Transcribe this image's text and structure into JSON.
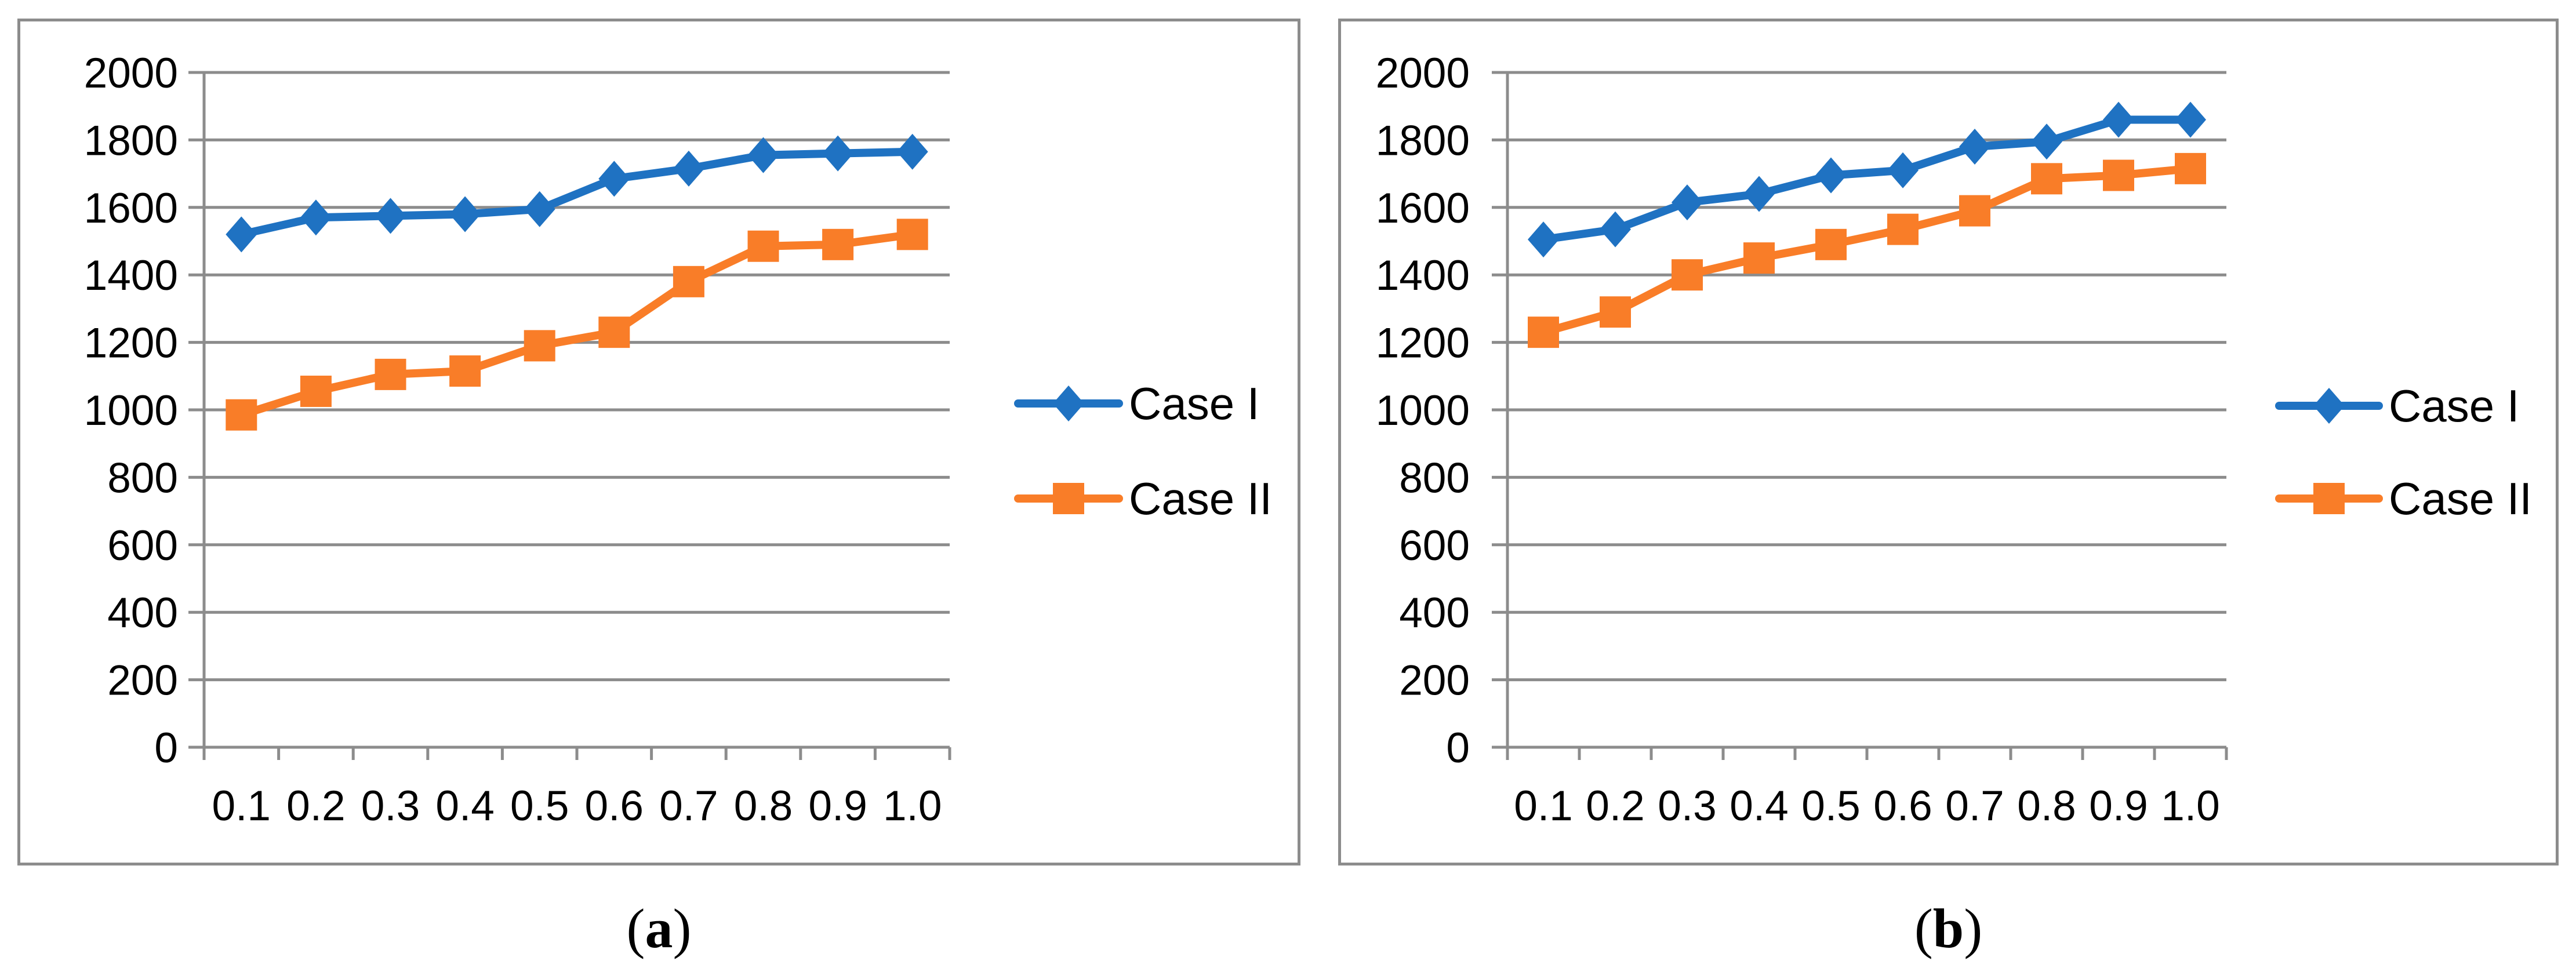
{
  "page": {
    "background": "#ffffff"
  },
  "colors": {
    "case1": "#1F72C2",
    "case2": "#F97D28",
    "grid": "#8C8C8C",
    "axis": "#8C8C8C",
    "border": "#8C8C8C",
    "text": "#000000"
  },
  "captions": {
    "a": {
      "open": "(",
      "label": "a",
      "close": ")"
    },
    "b": {
      "open": "(",
      "label": "b",
      "close": ")"
    }
  },
  "chart_data": [
    {
      "id": "a",
      "type": "line",
      "title": "",
      "xlabel": "",
      "ylabel": "",
      "caption": "(a)",
      "categories": [
        "0.1",
        "0.2",
        "0.3",
        "0.4",
        "0.5",
        "0.6",
        "0.7",
        "0.8",
        "0.9",
        "1.0"
      ],
      "series": [
        {
          "name": "Case I",
          "marker": "diamond",
          "color": "#1F72C2",
          "values": [
            1520,
            1570,
            1575,
            1580,
            1595,
            1685,
            1715,
            1755,
            1760,
            1765
          ]
        },
        {
          "name": "Case II",
          "marker": "square",
          "color": "#F97D28",
          "values": [
            985,
            1055,
            1105,
            1115,
            1190,
            1230,
            1380,
            1485,
            1490,
            1520
          ]
        }
      ],
      "ylim": [
        0,
        2000
      ],
      "ytick_step": 200,
      "ytick_labels": [
        "0",
        "200",
        "400",
        "600",
        "800",
        "1000",
        "1200",
        "1400",
        "1600",
        "1800",
        "2000"
      ],
      "grid": true,
      "legend_position": "right"
    },
    {
      "id": "b",
      "type": "line",
      "title": "",
      "xlabel": "",
      "ylabel": "",
      "caption": "(b)",
      "categories": [
        "0.1",
        "0.2",
        "0.3",
        "0.4",
        "0.5",
        "0.6",
        "0.7",
        "0.8",
        "0.9",
        "1.0"
      ],
      "series": [
        {
          "name": "Case I",
          "marker": "diamond",
          "color": "#1F72C2",
          "values": [
            1505,
            1535,
            1615,
            1640,
            1695,
            1710,
            1780,
            1795,
            1860,
            1860
          ]
        },
        {
          "name": "Case II",
          "marker": "square",
          "color": "#F97D28",
          "values": [
            1230,
            1290,
            1400,
            1450,
            1490,
            1535,
            1590,
            1685,
            1695,
            1715
          ]
        }
      ],
      "ylim": [
        0,
        2000
      ],
      "ytick_step": 200,
      "ytick_labels": [
        "0",
        "200",
        "400",
        "600",
        "800",
        "1000",
        "1200",
        "1400",
        "1600",
        "1800",
        "2000"
      ],
      "grid": true,
      "legend_position": "right"
    }
  ]
}
